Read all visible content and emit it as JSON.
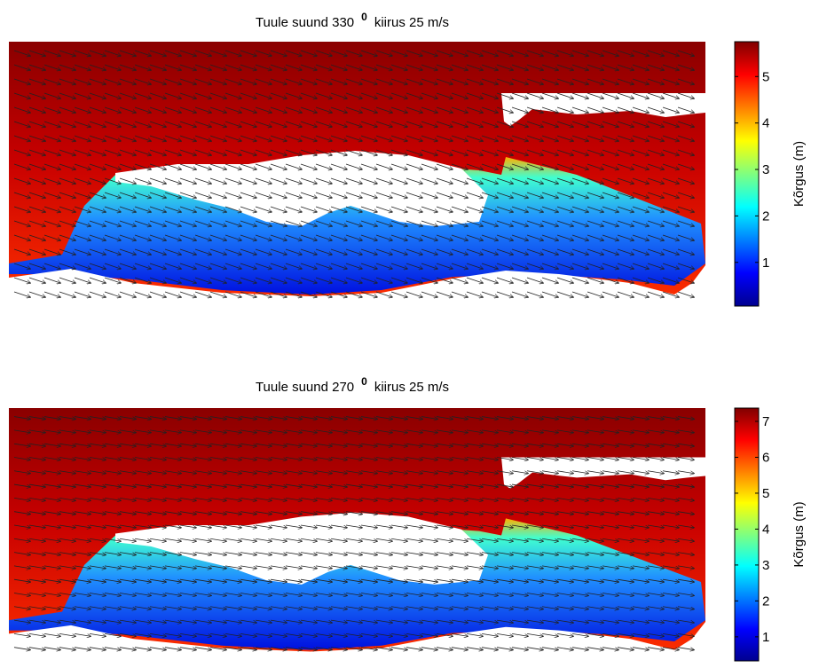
{
  "chart_data": [
    {
      "type": "heatmap",
      "title": "Tuule suund 330",
      "title_superscript": "0",
      "title_suffix": "kiirus 25 m/s",
      "colorbar_label": "Kõrgus (m)",
      "clim": [
        0.06,
        5.75
      ],
      "cticks": [
        1,
        2,
        3,
        4,
        5
      ],
      "colormap": "jet"
    },
    {
      "type": "heatmap",
      "title": "Tuule suund 270",
      "title_superscript": "0",
      "title_suffix": "kiirus 25 m/s",
      "colorbar_label": "Kõrgus (m)",
      "clim": [
        0.33,
        7.37
      ],
      "cticks": [
        1,
        2,
        3,
        4,
        5,
        6,
        7
      ],
      "colormap": "jet"
    }
  ]
}
